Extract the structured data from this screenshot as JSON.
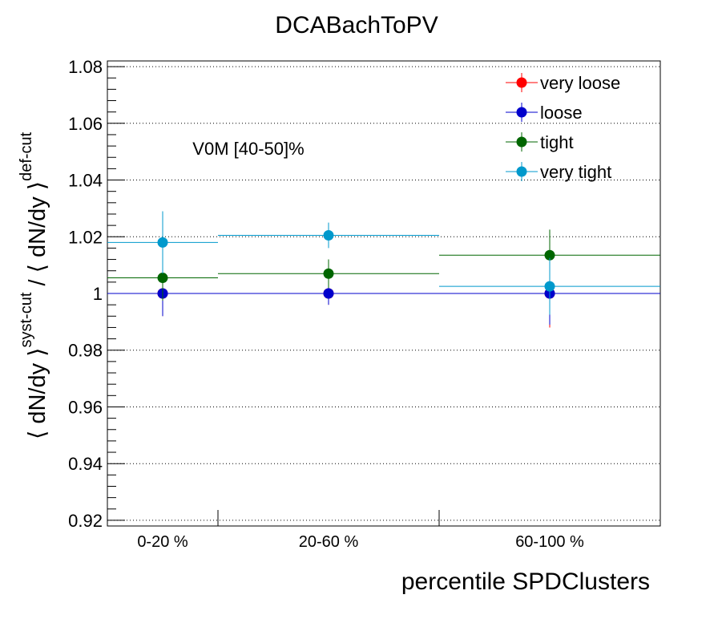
{
  "chart_data": {
    "type": "scatter",
    "title": "DCABachToPV",
    "xlabel": "percentile SPDClusters",
    "ylabel": {
      "part1": "⟨ dN/dy ⟩",
      "sup1": "syst-cut",
      "part2": " / ⟨ dN/dy ⟩",
      "sup2": "def-cut"
    },
    "annotation": "V0M [40-50]%",
    "categories": [
      "0-20 %",
      "20-60 %",
      "60-100 %"
    ],
    "bin_edges": [
      0,
      20,
      60,
      100
    ],
    "ylim": [
      0.918,
      1.082
    ],
    "y_ticks": [
      0.92,
      0.94,
      0.96,
      0.98,
      1,
      1.02,
      1.04,
      1.06,
      1.08
    ],
    "y_tick_labels": [
      "0.92",
      "0.94",
      "0.96",
      "0.98",
      "1",
      "1.02",
      "1.04",
      "1.06",
      "1.08"
    ],
    "grid": true,
    "legend_position": "top-right",
    "series": [
      {
        "name": "very loose",
        "color": "#ff0000",
        "values": [
          1.0,
          1.0,
          1.0
        ],
        "errors": [
          0.008,
          0.004,
          0.012
        ]
      },
      {
        "name": "loose",
        "color": "#0000cc",
        "values": [
          1.0,
          1.0,
          1.0
        ],
        "errors": [
          0.008,
          0.004,
          0.011
        ]
      },
      {
        "name": "tight",
        "color": "#006600",
        "values": [
          1.0055,
          1.007,
          1.0135
        ],
        "errors": [
          0.008,
          0.005,
          0.009
        ]
      },
      {
        "name": "very tight",
        "color": "#0099cc",
        "values": [
          1.018,
          1.0205,
          1.0025
        ],
        "errors": [
          0.011,
          0.0045,
          0.01
        ]
      }
    ]
  }
}
